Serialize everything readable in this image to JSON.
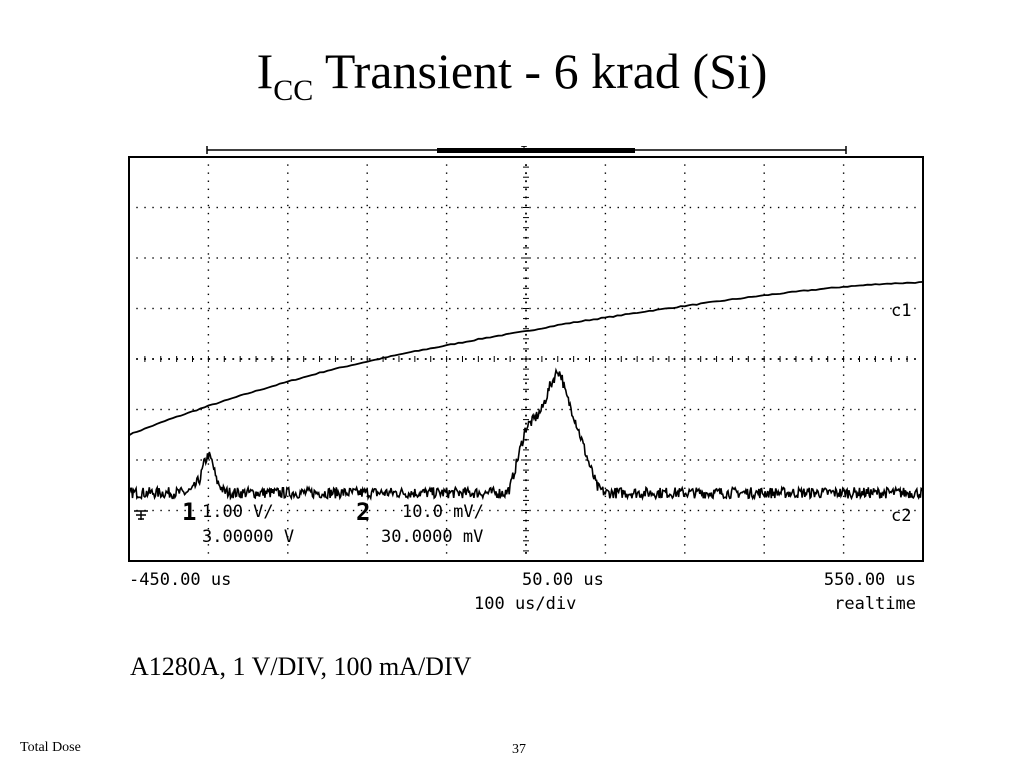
{
  "slide": {
    "title_main": "I",
    "title_sub": "CC",
    "title_rest": " Transient - 6 krad (Si)",
    "caption": "A1280A, 1 V/DIV, 100 mA/DIV",
    "footer_left": "Total Dose",
    "page_number": "37"
  },
  "chart_data": {
    "type": "line",
    "title": "ICC Transient - 6 krad (Si)",
    "xlabel": "",
    "ylabel": "",
    "grid": true,
    "x_unit": "us",
    "xlim": [
      -450,
      550
    ],
    "ylim": [
      -4,
      4
    ],
    "x_tick_labels": {
      "left": "-450.00 us",
      "center": "50.00 us",
      "right": "550.00 us",
      "timebase": "100  us/div",
      "mode": "realtime"
    },
    "channel_readout": {
      "ch1_label": "1",
      "ch1_scale": "1.00  V/",
      "ch1_offset": "3.00000  V",
      "ch2_label": "2",
      "ch2_scale": "10.0 mV/",
      "ch2_offset": "30.0000 mV"
    },
    "series": [
      {
        "name": "c1",
        "x": [
          -450,
          -400,
          -350,
          -300,
          -250,
          -200,
          -150,
          -100,
          -50,
          0,
          50,
          100,
          150,
          200,
          250,
          300,
          350,
          400,
          450,
          500,
          550
        ],
        "y": [
          -1.5,
          -1.2,
          -0.93,
          -0.68,
          -0.45,
          -0.23,
          -0.05,
          0.12,
          0.27,
          0.42,
          0.55,
          0.7,
          0.82,
          0.94,
          1.05,
          1.16,
          1.26,
          1.35,
          1.43,
          1.49,
          1.52
        ]
      },
      {
        "name": "c2",
        "x": [
          -450,
          -380,
          -370,
          -360,
          -355,
          -350,
          -345,
          -340,
          -330,
          -320,
          -250,
          -150,
          -50,
          0,
          25,
          30,
          40,
          50,
          60,
          70,
          80,
          90,
          95,
          100,
          110,
          120,
          130,
          140,
          150,
          160,
          200,
          300,
          400,
          500,
          550
        ],
        "y": [
          -2.65,
          -2.65,
          -2.6,
          -2.35,
          -2.05,
          -1.9,
          -2.05,
          -2.4,
          -2.63,
          -2.65,
          -2.65,
          -2.65,
          -2.65,
          -2.65,
          -2.65,
          -2.55,
          -1.95,
          -1.35,
          -1.2,
          -1.0,
          -0.55,
          -0.22,
          -0.35,
          -0.7,
          -1.1,
          -1.6,
          -2.1,
          -2.55,
          -2.65,
          -2.65,
          -2.65,
          -2.65,
          -2.65,
          -2.65,
          -2.65
        ]
      }
    ]
  }
}
